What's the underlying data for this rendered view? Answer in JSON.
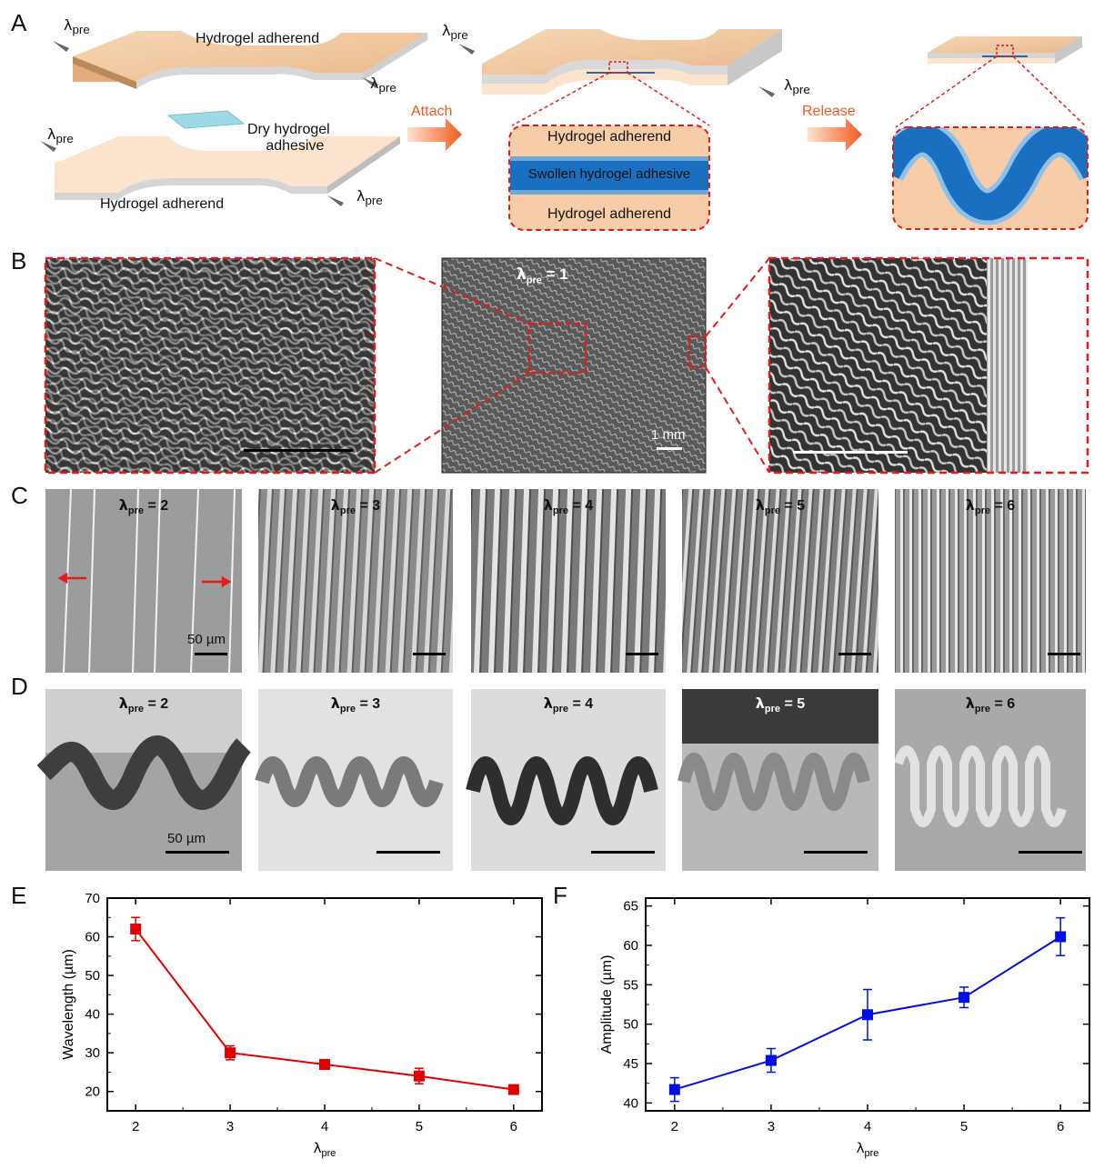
{
  "panels": {
    "a": "A",
    "b": "B",
    "c": "C",
    "d": "D",
    "e": "E",
    "f": "F"
  },
  "panelA": {
    "lambda": "λ",
    "pre": "pre",
    "adherend_top": "Hydrogel adherend",
    "adherend_bottom": "Hydrogel adherend",
    "dry_adhesive_line1": "Dry hydrogel",
    "dry_adhesive_line2": "adhesive",
    "attach": "Attach",
    "release": "Release",
    "inset_top": "Hydrogel adherend",
    "inset_middle": "Swollen hydrogel adhesive",
    "inset_bottom": "Hydrogel adherend",
    "colors": {
      "adherend": "#f3c9a3",
      "adhesive": "#1a6fc1",
      "arrow": "#f05a1e",
      "dash": "#e21b1b"
    }
  },
  "panelB": {
    "center_label_value": "= 1",
    "scale_center": "1 mm"
  },
  "panelC": {
    "images": [
      {
        "value": "= 2"
      },
      {
        "value": "= 3"
      },
      {
        "value": "= 4"
      },
      {
        "value": "= 5"
      },
      {
        "value": "= 6"
      }
    ],
    "scale": "50 µm"
  },
  "panelD": {
    "images": [
      {
        "value": "= 2"
      },
      {
        "value": "= 3"
      },
      {
        "value": "= 4"
      },
      {
        "value": "= 5"
      },
      {
        "value": "= 6"
      }
    ],
    "scale": "50 µm"
  },
  "chart_data": [
    {
      "type": "line",
      "panel": "E",
      "x": [
        2,
        3,
        4,
        5,
        6
      ],
      "series": [
        {
          "values": [
            62,
            30,
            27,
            24,
            20.5
          ],
          "errors": [
            3,
            1.8,
            0.8,
            2,
            0.8
          ],
          "color": "#e00000",
          "marker": "square"
        }
      ],
      "xlabel_main": "λ",
      "xlabel_sub": "pre",
      "ylabel": "Wavelength (µm)",
      "xlim": [
        1.7,
        6.3
      ],
      "ylim": [
        15,
        70
      ],
      "xticks": [
        2,
        3,
        4,
        5,
        6
      ],
      "yticks": [
        20,
        30,
        40,
        50,
        60,
        70
      ]
    },
    {
      "type": "line",
      "panel": "F",
      "x": [
        2,
        3,
        4,
        5,
        6
      ],
      "series": [
        {
          "values": [
            41.7,
            45.4,
            51.2,
            53.4,
            61.1
          ],
          "errors": [
            1.5,
            1.5,
            3.2,
            1.3,
            2.4
          ],
          "color": "#0010e0",
          "marker": "square"
        }
      ],
      "xlabel_main": "λ",
      "xlabel_sub": "pre",
      "ylabel": "Amplitude (µm)",
      "xlim": [
        1.7,
        6.3
      ],
      "ylim": [
        39,
        66
      ],
      "xticks": [
        2,
        3,
        4,
        5,
        6
      ],
      "yticks": [
        40,
        45,
        50,
        55,
        60,
        65
      ]
    }
  ]
}
